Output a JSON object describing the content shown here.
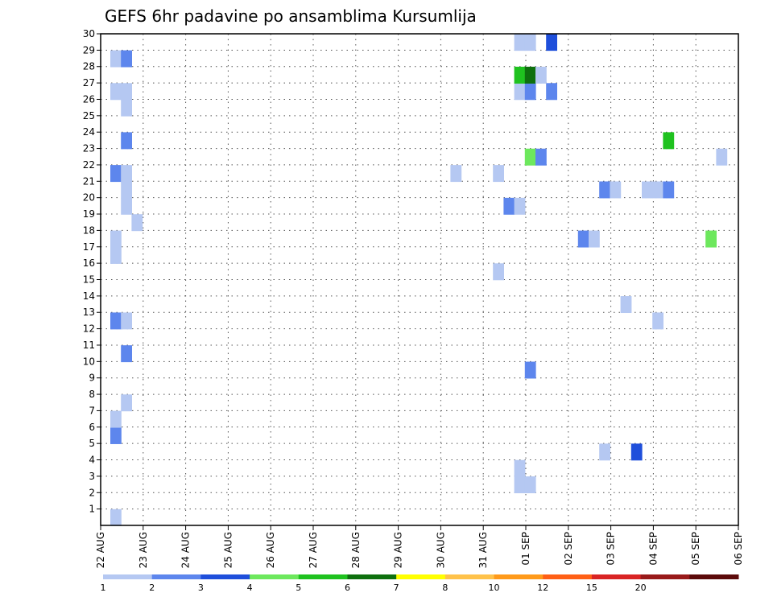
{
  "chart_data": {
    "type": "heatmap",
    "title": "GEFS 6hr padavine po ansamblima Kursumlija",
    "xlabel": "",
    "ylabel": "",
    "x_tick_labels": [
      "22 AUG",
      "23 AUG",
      "24 AUG",
      "25 AUG",
      "26 AUG",
      "27 AUG",
      "28 AUG",
      "29 AUG",
      "30 AUG",
      "31 AUG",
      "01 SEP",
      "02 SEP",
      "03 SEP",
      "04 SEP",
      "05 SEP",
      "06 SEP"
    ],
    "y_tick_labels": [
      "1",
      "2",
      "3",
      "4",
      "5",
      "6",
      "7",
      "8",
      "9",
      "10",
      "11",
      "12",
      "13",
      "14",
      "15",
      "16",
      "17",
      "18",
      "19",
      "20",
      "21",
      "22",
      "23",
      "24",
      "25",
      "26",
      "27",
      "28",
      "29",
      "30"
    ],
    "xlim_days": [
      0,
      15
    ],
    "ylim": [
      0,
      30
    ],
    "grid": true,
    "colorbar": {
      "labels": [
        "1",
        "2",
        "3",
        "4",
        "5",
        "6",
        "7",
        "8",
        "10",
        "12",
        "15",
        "20"
      ],
      "colors": [
        "#b5c8f2",
        "#5d86ed",
        "#1f4fdb",
        "#6de85d",
        "#1fc21f",
        "#0e700e",
        "#ffff00",
        "#ffc24a",
        "#ff9a1a",
        "#ff5f15",
        "#d92424",
        "#991a1a",
        "#5c0a0a"
      ]
    },
    "cells": [
      {
        "d": 0.0,
        "y": 0,
        "c": 1
      },
      {
        "d": 0.0,
        "y": 5,
        "c": 2
      },
      {
        "d": 0.0,
        "y": 6,
        "c": 1
      },
      {
        "d": 0.25,
        "y": 7,
        "c": 1
      },
      {
        "d": 0.25,
        "y": 10,
        "c": 2
      },
      {
        "d": 0.0,
        "y": 12,
        "c": 2
      },
      {
        "d": 0.25,
        "y": 12,
        "c": 1
      },
      {
        "d": 0.0,
        "y": 16,
        "c": 1
      },
      {
        "d": 0.0,
        "y": 17,
        "c": 1
      },
      {
        "d": 0.5,
        "y": 18,
        "c": 1
      },
      {
        "d": 0.25,
        "y": 19,
        "c": 1
      },
      {
        "d": 0.25,
        "y": 20,
        "c": 1
      },
      {
        "d": 0.0,
        "y": 21,
        "c": 2
      },
      {
        "d": 0.25,
        "y": 21,
        "c": 1
      },
      {
        "d": 0.25,
        "y": 23,
        "c": 2
      },
      {
        "d": 0.25,
        "y": 25,
        "c": 1
      },
      {
        "d": 0.0,
        "y": 26,
        "c": 1
      },
      {
        "d": 0.25,
        "y": 26,
        "c": 1
      },
      {
        "d": 0.0,
        "y": 28,
        "c": 1
      },
      {
        "d": 0.25,
        "y": 28,
        "c": 2
      },
      {
        "d": 8.0,
        "y": 21,
        "c": 1
      },
      {
        "d": 9.0,
        "y": 21,
        "c": 1
      },
      {
        "d": 9.0,
        "y": 15,
        "c": 1
      },
      {
        "d": 9.25,
        "y": 19,
        "c": 2
      },
      {
        "d": 9.5,
        "y": 19,
        "c": 1
      },
      {
        "d": 9.5,
        "y": 2,
        "c": 1
      },
      {
        "d": 9.75,
        "y": 2,
        "c": 1
      },
      {
        "d": 9.5,
        "y": 3,
        "c": 1
      },
      {
        "d": 9.75,
        "y": 9,
        "c": 2
      },
      {
        "d": 9.75,
        "y": 22,
        "c": 4
      },
      {
        "d": 10.0,
        "y": 22,
        "c": 2
      },
      {
        "d": 9.5,
        "y": 26,
        "c": 1
      },
      {
        "d": 9.75,
        "y": 26,
        "c": 2
      },
      {
        "d": 10.25,
        "y": 26,
        "c": 2
      },
      {
        "d": 9.5,
        "y": 27,
        "c": 5
      },
      {
        "d": 9.75,
        "y": 27,
        "c": 6
      },
      {
        "d": 10.0,
        "y": 27,
        "c": 1
      },
      {
        "d": 9.5,
        "y": 29,
        "c": 1
      },
      {
        "d": 9.75,
        "y": 29,
        "c": 1
      },
      {
        "d": 10.25,
        "y": 29,
        "c": 3
      },
      {
        "d": 11.0,
        "y": 17,
        "c": 2
      },
      {
        "d": 11.25,
        "y": 17,
        "c": 1
      },
      {
        "d": 11.5,
        "y": 4,
        "c": 1
      },
      {
        "d": 11.5,
        "y": 20,
        "c": 2
      },
      {
        "d": 11.75,
        "y": 20,
        "c": 1
      },
      {
        "d": 12.0,
        "y": 13,
        "c": 1
      },
      {
        "d": 12.25,
        "y": 4,
        "c": 3
      },
      {
        "d": 12.75,
        "y": 12,
        "c": 1
      },
      {
        "d": 12.5,
        "y": 20,
        "c": 1
      },
      {
        "d": 12.75,
        "y": 20,
        "c": 1
      },
      {
        "d": 13.0,
        "y": 20,
        "c": 2
      },
      {
        "d": 13.0,
        "y": 23,
        "c": 5
      },
      {
        "d": 14.0,
        "y": 17,
        "c": 4
      },
      {
        "d": 14.25,
        "y": 22,
        "c": 1
      }
    ]
  }
}
